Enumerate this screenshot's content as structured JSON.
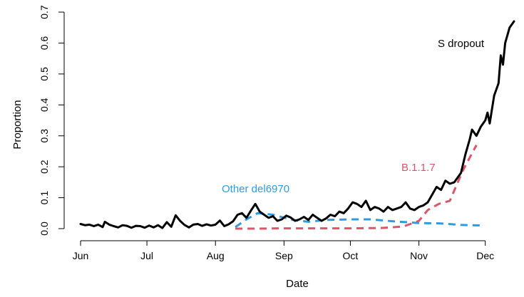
{
  "chart_data": {
    "type": "line",
    "xlabel": "Date",
    "ylabel": "Proportion",
    "x_ticks": [
      "Jun",
      "Jul",
      "Aug",
      "Sep",
      "Oct",
      "Nov",
      "Dec"
    ],
    "x_tick_dates": [
      "2020-06-01",
      "2020-07-01",
      "2020-08-01",
      "2020-09-01",
      "2020-10-01",
      "2020-11-01",
      "2020-12-01"
    ],
    "y_ticks": [
      0.0,
      0.1,
      0.2,
      0.3,
      0.4,
      0.5,
      0.6,
      0.7
    ],
    "y_tick_labels": [
      "0.0",
      "0.1",
      "0.2",
      "0.3",
      "0.4",
      "0.5",
      "0.6",
      "0.7"
    ],
    "xlim": [
      "2020-06-01",
      "2020-12-14"
    ],
    "ylim": [
      0,
      0.7
    ],
    "grid": false,
    "legend": "none",
    "series": [
      {
        "name": "S dropout",
        "color": "#000000",
        "style": "solid",
        "points": [
          [
            "2020-06-01",
            0.015
          ],
          [
            "2020-06-03",
            0.011
          ],
          [
            "2020-06-05",
            0.013
          ],
          [
            "2020-06-07",
            0.008
          ],
          [
            "2020-06-09",
            0.013
          ],
          [
            "2020-06-11",
            0.005
          ],
          [
            "2020-06-12",
            0.022
          ],
          [
            "2020-06-14",
            0.013
          ],
          [
            "2020-06-16",
            0.008
          ],
          [
            "2020-06-18",
            0.004
          ],
          [
            "2020-06-20",
            0.011
          ],
          [
            "2020-06-22",
            0.009
          ],
          [
            "2020-06-24",
            0.003
          ],
          [
            "2020-06-26",
            0.009
          ],
          [
            "2020-06-28",
            0.008
          ],
          [
            "2020-06-30",
            0.003
          ],
          [
            "2020-07-02",
            0.01
          ],
          [
            "2020-07-04",
            0.004
          ],
          [
            "2020-07-06",
            0.011
          ],
          [
            "2020-07-08",
            0.002
          ],
          [
            "2020-07-10",
            0.021
          ],
          [
            "2020-07-12",
            0.006
          ],
          [
            "2020-07-14",
            0.043
          ],
          [
            "2020-07-16",
            0.025
          ],
          [
            "2020-07-18",
            0.012
          ],
          [
            "2020-07-20",
            0.004
          ],
          [
            "2020-07-22",
            0.013
          ],
          [
            "2020-07-24",
            0.015
          ],
          [
            "2020-07-26",
            0.009
          ],
          [
            "2020-07-28",
            0.014
          ],
          [
            "2020-07-30",
            0.01
          ],
          [
            "2020-08-01",
            0.013
          ],
          [
            "2020-08-03",
            0.026
          ],
          [
            "2020-08-05",
            0.008
          ],
          [
            "2020-08-07",
            0.014
          ],
          [
            "2020-08-09",
            0.024
          ],
          [
            "2020-08-11",
            0.045
          ],
          [
            "2020-08-13",
            0.05
          ],
          [
            "2020-08-15",
            0.035
          ],
          [
            "2020-08-17",
            0.058
          ],
          [
            "2020-08-19",
            0.08
          ],
          [
            "2020-08-21",
            0.055
          ],
          [
            "2020-08-23",
            0.045
          ],
          [
            "2020-08-25",
            0.035
          ],
          [
            "2020-08-27",
            0.04
          ],
          [
            "2020-08-29",
            0.025
          ],
          [
            "2020-08-31",
            0.03
          ],
          [
            "2020-09-02",
            0.042
          ],
          [
            "2020-09-04",
            0.036
          ],
          [
            "2020-09-06",
            0.025
          ],
          [
            "2020-09-08",
            0.03
          ],
          [
            "2020-09-10",
            0.038
          ],
          [
            "2020-09-12",
            0.028
          ],
          [
            "2020-09-14",
            0.045
          ],
          [
            "2020-09-16",
            0.035
          ],
          [
            "2020-09-18",
            0.025
          ],
          [
            "2020-09-20",
            0.033
          ],
          [
            "2020-09-22",
            0.045
          ],
          [
            "2020-09-24",
            0.04
          ],
          [
            "2020-09-26",
            0.055
          ],
          [
            "2020-09-28",
            0.05
          ],
          [
            "2020-09-30",
            0.065
          ],
          [
            "2020-10-02",
            0.085
          ],
          [
            "2020-10-04",
            0.08
          ],
          [
            "2020-10-06",
            0.07
          ],
          [
            "2020-10-08",
            0.09
          ],
          [
            "2020-10-10",
            0.06
          ],
          [
            "2020-10-12",
            0.07
          ],
          [
            "2020-10-14",
            0.065
          ],
          [
            "2020-10-16",
            0.055
          ],
          [
            "2020-10-18",
            0.07
          ],
          [
            "2020-10-20",
            0.06
          ],
          [
            "2020-10-22",
            0.065
          ],
          [
            "2020-10-24",
            0.07
          ],
          [
            "2020-10-26",
            0.085
          ],
          [
            "2020-10-28",
            0.065
          ],
          [
            "2020-10-30",
            0.06
          ],
          [
            "2020-11-01",
            0.07
          ],
          [
            "2020-11-03",
            0.075
          ],
          [
            "2020-11-05",
            0.085
          ],
          [
            "2020-11-07",
            0.11
          ],
          [
            "2020-11-09",
            0.135
          ],
          [
            "2020-11-11",
            0.125
          ],
          [
            "2020-11-13",
            0.155
          ],
          [
            "2020-11-15",
            0.145
          ],
          [
            "2020-11-17",
            0.15
          ],
          [
            "2020-11-19",
            0.17
          ],
          [
            "2020-11-20",
            0.18
          ],
          [
            "2020-11-22",
            0.24
          ],
          [
            "2020-11-24",
            0.29
          ],
          [
            "2020-11-25",
            0.32
          ],
          [
            "2020-11-27",
            0.3
          ],
          [
            "2020-11-29",
            0.33
          ],
          [
            "2020-12-01",
            0.35
          ],
          [
            "2020-12-02",
            0.375
          ],
          [
            "2020-12-03",
            0.34
          ],
          [
            "2020-12-05",
            0.43
          ],
          [
            "2020-12-07",
            0.47
          ],
          [
            "2020-12-08",
            0.56
          ],
          [
            "2020-12-09",
            0.53
          ],
          [
            "2020-12-10",
            0.6
          ],
          [
            "2020-12-12",
            0.65
          ],
          [
            "2020-12-14",
            0.67
          ]
        ]
      },
      {
        "name": "B.1.1.7",
        "color": "#d9566b",
        "style": "dashed",
        "points": [
          [
            "2020-08-10",
            0.0
          ],
          [
            "2020-08-20",
            0.0
          ],
          [
            "2020-09-01",
            0.001
          ],
          [
            "2020-09-15",
            0.001
          ],
          [
            "2020-10-01",
            0.001
          ],
          [
            "2020-10-15",
            0.002
          ],
          [
            "2020-10-25",
            0.007
          ],
          [
            "2020-11-01",
            0.025
          ],
          [
            "2020-11-05",
            0.06
          ],
          [
            "2020-11-10",
            0.08
          ],
          [
            "2020-11-15",
            0.09
          ],
          [
            "2020-11-18",
            0.14
          ],
          [
            "2020-11-21",
            0.19
          ],
          [
            "2020-11-24",
            0.23
          ],
          [
            "2020-11-27",
            0.27
          ]
        ]
      },
      {
        "name": "Other del6970",
        "color": "#2e9be0",
        "style": "dashed",
        "points": [
          [
            "2020-08-10",
            0.005
          ],
          [
            "2020-08-15",
            0.03
          ],
          [
            "2020-08-20",
            0.05
          ],
          [
            "2020-08-27",
            0.045
          ],
          [
            "2020-09-05",
            0.028
          ],
          [
            "2020-09-12",
            0.022
          ],
          [
            "2020-09-20",
            0.028
          ],
          [
            "2020-10-01",
            0.03
          ],
          [
            "2020-10-10",
            0.03
          ],
          [
            "2020-10-20",
            0.024
          ],
          [
            "2020-11-01",
            0.018
          ],
          [
            "2020-11-10",
            0.017
          ],
          [
            "2020-11-20",
            0.012
          ],
          [
            "2020-11-30",
            0.01
          ]
        ]
      }
    ],
    "annotations": [
      {
        "text": "S dropout",
        "color": "#000000"
      },
      {
        "text": "B.1.1.7",
        "color": "#d9566b"
      },
      {
        "text": "Other del6970",
        "color": "#2e9be0"
      }
    ]
  }
}
